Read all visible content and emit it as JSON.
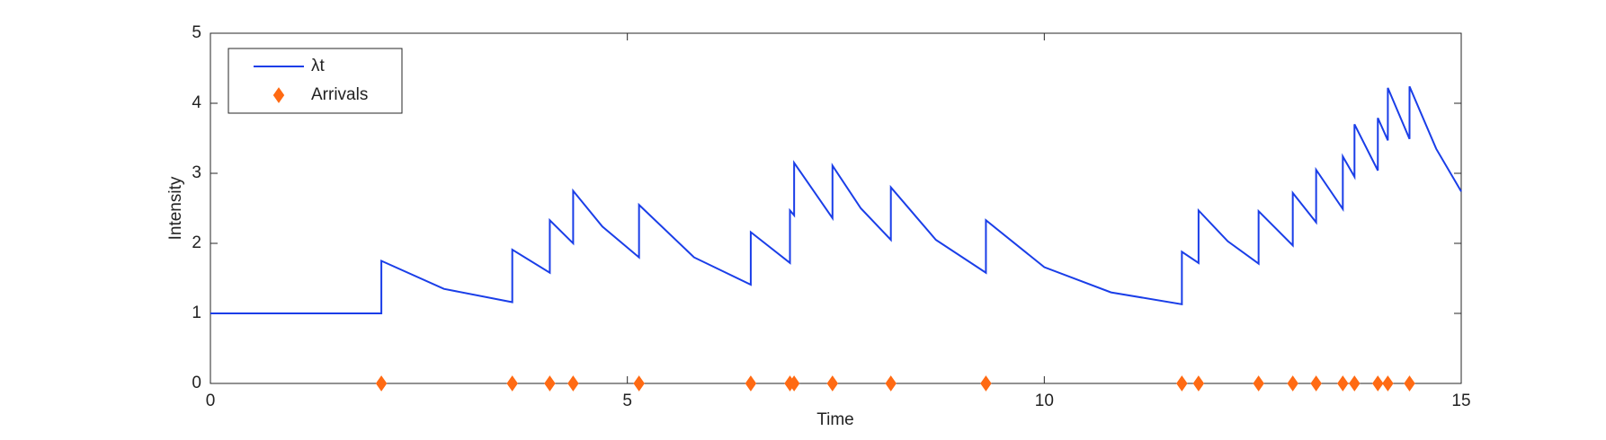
{
  "chart_data": {
    "type": "line",
    "xlabel": "Time",
    "ylabel": "Intensity",
    "xlim": [
      0,
      15
    ],
    "xticks": [
      0,
      5,
      10,
      15
    ],
    "ylim": [
      0,
      5
    ],
    "yticks": [
      0,
      1,
      2,
      3,
      4,
      5
    ],
    "legend": "upper left",
    "series": [
      {
        "name": "λt",
        "color": "#1a3ee8",
        "x": [
          0,
          2.05,
          2.05,
          2.8,
          3.62,
          3.62,
          4.07,
          4.07,
          4.35,
          4.35,
          4.7,
          5.14,
          5.14,
          5.8,
          6.48,
          6.48,
          6.95,
          6.95,
          7.0,
          7.0,
          7.46,
          7.46,
          7.8,
          8.16,
          8.16,
          8.7,
          9.3,
          9.3,
          10.0,
          10.8,
          11.65,
          11.65,
          11.85,
          11.85,
          12.2,
          12.57,
          12.57,
          12.98,
          12.98,
          13.26,
          13.26,
          13.58,
          13.58,
          13.72,
          13.72,
          14.0,
          14.0,
          14.12,
          14.12,
          14.38,
          14.38,
          14.7,
          15
        ],
        "values": [
          1,
          1,
          1.75,
          1.35,
          1.16,
          1.91,
          1.58,
          2.33,
          2.0,
          2.75,
          2.24,
          1.8,
          2.55,
          1.8,
          1.41,
          2.16,
          1.72,
          2.47,
          2.4,
          3.15,
          2.36,
          3.11,
          2.5,
          2.05,
          2.8,
          2.05,
          1.58,
          2.33,
          1.66,
          1.3,
          1.13,
          1.88,
          1.72,
          2.47,
          2.03,
          1.71,
          2.46,
          1.97,
          2.72,
          2.3,
          3.05,
          2.49,
          3.24,
          2.95,
          3.7,
          3.04,
          3.79,
          3.47,
          4.22,
          3.49,
          4.24,
          3.35,
          2.74
        ]
      },
      {
        "name": "Arrivals",
        "color": "#ff6a13",
        "marker": "diamond",
        "x": [
          2.05,
          3.62,
          4.07,
          4.35,
          5.14,
          6.48,
          6.95,
          7.0,
          7.46,
          8.16,
          9.3,
          11.65,
          11.85,
          12.57,
          12.98,
          13.26,
          13.58,
          13.72,
          14.0,
          14.12,
          14.38
        ],
        "values": [
          0,
          0,
          0,
          0,
          0,
          0,
          0,
          0,
          0,
          0,
          0,
          0,
          0,
          0,
          0,
          0,
          0,
          0,
          0,
          0,
          0
        ]
      }
    ]
  }
}
